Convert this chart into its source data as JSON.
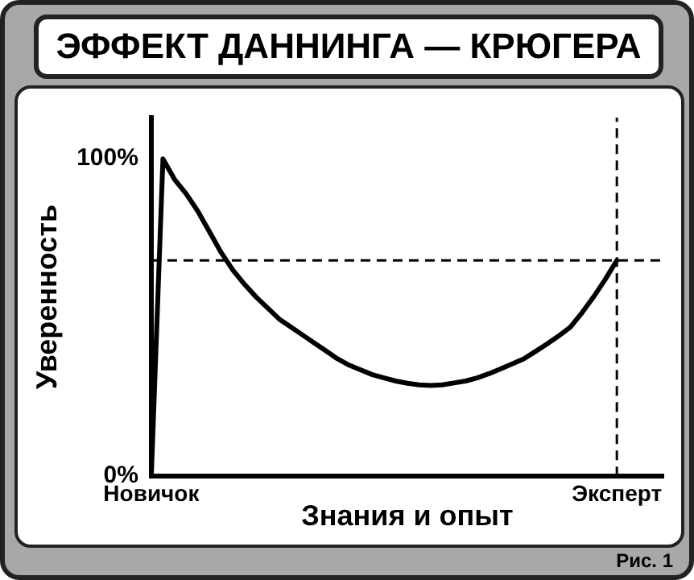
{
  "chart_data": {
    "type": "line",
    "title": "ЭФФЕКТ ДАННИНГА — КРЮГЕРА",
    "xlabel": "Знания и опыт",
    "ylabel": "Уверенность",
    "categories": [
      "Новичок",
      null,
      null,
      null,
      null,
      null,
      null,
      null,
      null,
      null,
      null,
      null,
      null,
      null,
      null,
      null,
      null,
      null,
      null,
      null,
      null,
      null,
      null,
      null,
      null,
      null,
      null,
      null,
      null,
      null,
      null,
      null,
      null,
      null,
      null,
      null,
      null,
      null,
      null,
      null,
      "Эксперт",
      null,
      null,
      null,
      null
    ],
    "series": [
      {
        "color": "#000000",
        "values": [
          0,
          100,
          93.5,
          89,
          83.5,
          77,
          70.5,
          65,
          60.5,
          56.5,
          53,
          49.5,
          47,
          44.5,
          42,
          39.5,
          37,
          35,
          33.5,
          32,
          31,
          30,
          29.3,
          28.8,
          28.6,
          28.8,
          29.4,
          30,
          31,
          32.3,
          33.8,
          35.4,
          37,
          39.3,
          41.7,
          44.2,
          47,
          51.5,
          56.5,
          62,
          68,
          null,
          null,
          null,
          null
        ]
      }
    ],
    "ylim": [
      0,
      113
    ],
    "yticks": [
      {
        "value": 0,
        "label": "0%"
      },
      {
        "value": 100,
        "label": "100%"
      }
    ],
    "ref_lines": [
      {
        "axis": "y",
        "value": 68,
        "label": null,
        "line_style": "dashed",
        "color": "#000000"
      },
      {
        "axis": "x",
        "value": "Эксперт",
        "label": null,
        "line_style": "dashed",
        "color": "#000000"
      }
    ],
    "annotations": [
      "Рис. 1"
    ],
    "grid": false,
    "legend": false,
    "marker": "none",
    "line_style": "solid"
  }
}
